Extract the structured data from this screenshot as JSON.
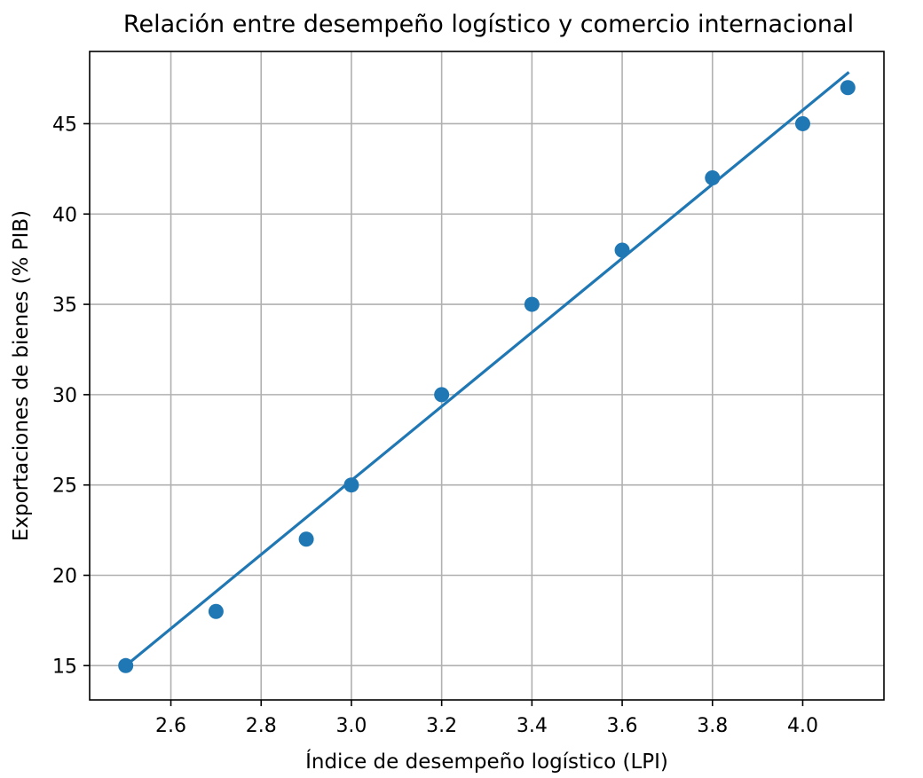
{
  "chart_data": {
    "type": "scatter",
    "title": "Relación entre desempeño logístico y comercio internacional",
    "xlabel": "Índice de desempeño logístico (LPI)",
    "ylabel": "Exportaciones de bienes (% PIB)",
    "xlim": [
      2.42,
      4.18
    ],
    "ylim": [
      13.1,
      49.0
    ],
    "xticks": [
      2.6,
      2.8,
      3.0,
      3.2,
      3.4,
      3.6,
      3.8,
      4.0
    ],
    "xtick_labels": [
      "2.6",
      "2.8",
      "3.0",
      "3.2",
      "3.4",
      "3.6",
      "3.8",
      "4.0"
    ],
    "yticks": [
      15,
      20,
      25,
      30,
      35,
      40,
      45
    ],
    "ytick_labels": [
      "15",
      "20",
      "25",
      "30",
      "35",
      "40",
      "45"
    ],
    "grid": true,
    "series": [
      {
        "type": "scatter",
        "color": "#1f77b4",
        "x": [
          2.5,
          2.7,
          2.9,
          3.0,
          3.2,
          3.4,
          3.6,
          3.8,
          4.0,
          4.1
        ],
        "y": [
          15,
          18,
          22,
          25,
          30,
          35,
          38,
          42,
          45,
          47
        ]
      },
      {
        "type": "line",
        "color": "#1f77b4",
        "x": [
          2.5,
          4.1
        ],
        "y": [
          15.0,
          47.8
        ]
      }
    ]
  }
}
